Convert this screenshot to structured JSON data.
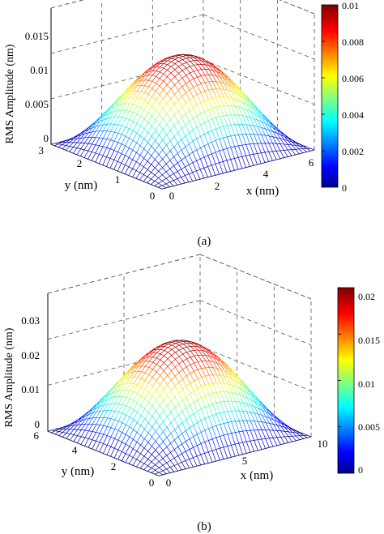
{
  "chart_data": [
    {
      "type": "surface3d",
      "panel_label": "(a)",
      "zlabel": "RMS Amplitude (nm)",
      "xlabel": "x (nm)",
      "ylabel": "y (nm)",
      "xlim": [
        0,
        6
      ],
      "ylim": [
        0,
        3
      ],
      "zlim": [
        0,
        0.015
      ],
      "xticks": [
        "0",
        "2",
        "4",
        "6"
      ],
      "yticks": [
        "0",
        "1",
        "2",
        "3"
      ],
      "zticks": [
        "0",
        "0.005",
        "0.01",
        "0.015"
      ],
      "surface_peak": 0.01,
      "surface_formula": "peak * sin(pi*x/xmax) * sin(pi*y/ymax)",
      "colorbar": {
        "range": [
          0,
          0.01
        ],
        "ticks": [
          "0",
          "0.002",
          "0.004",
          "0.006",
          "0.008",
          "0.01"
        ],
        "colormap": "jet"
      }
    },
    {
      "type": "surface3d",
      "panel_label": "(b)",
      "zlabel": "RMS Amplitude (nm)",
      "xlabel": "x (nm)",
      "ylabel": "y (nm)",
      "xlim": [
        0,
        10
      ],
      "ylim": [
        0,
        6
      ],
      "zlim": [
        0,
        0.03
      ],
      "xticks": [
        "0",
        "5",
        "10"
      ],
      "yticks": [
        "0",
        "2",
        "4",
        "6"
      ],
      "zticks": [
        "0",
        "0.01",
        "0.02",
        "0.03"
      ],
      "surface_peak": 0.02,
      "surface_formula": "peak * sin(pi*x/xmax) * sin(pi*y/ymax)",
      "colorbar": {
        "range": [
          0,
          0.02
        ],
        "ticks": [
          "0",
          "0.005",
          "0.01",
          "0.015",
          "0.02"
        ],
        "colormap": "jet"
      }
    }
  ]
}
